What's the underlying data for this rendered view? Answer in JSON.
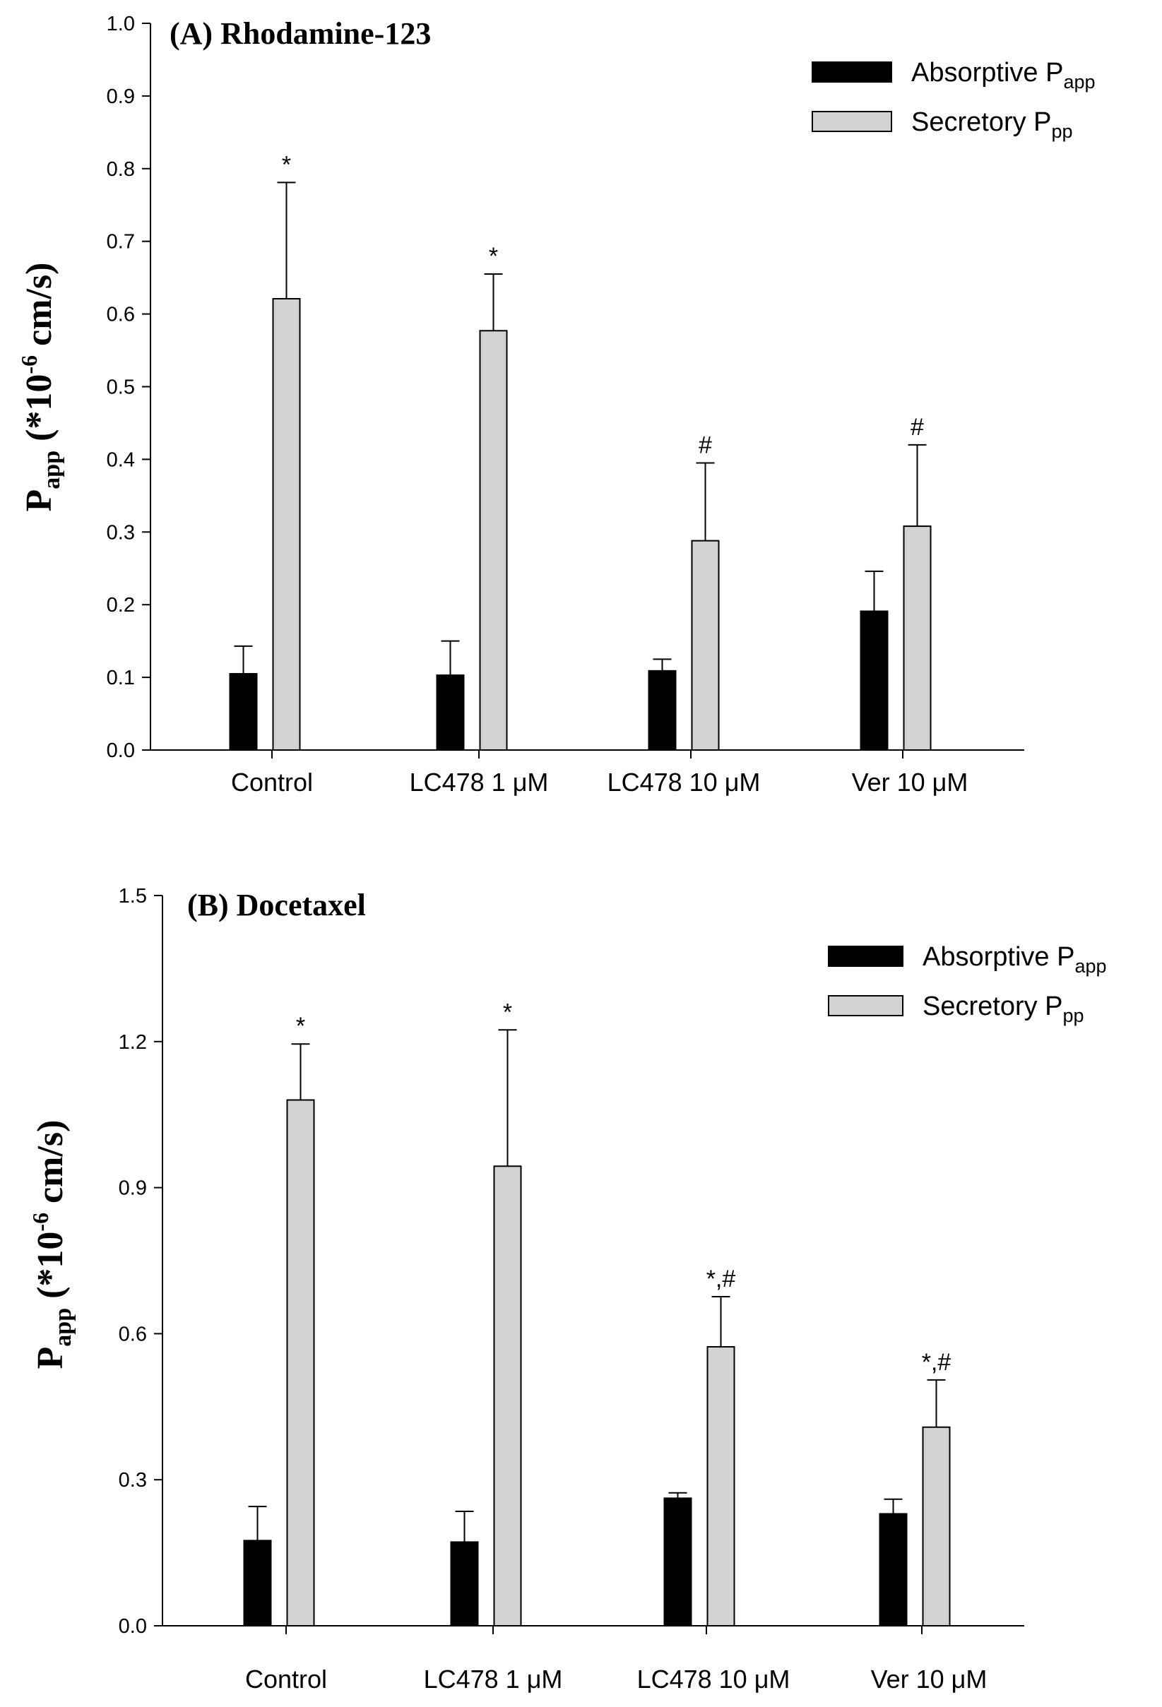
{
  "chart_data": [
    {
      "type": "bar",
      "title": "(A) Rhodamine-123",
      "ylabel": "P",
      "ylabel_sub": "app",
      "ylabel_rest": " (*10",
      "ylabel_sup": "-6",
      "ylabel_end": " cm/s)",
      "xlabel": "",
      "ylim": [
        0,
        1.0
      ],
      "yticks": [
        "0.0",
        "0.1",
        "0.2",
        "0.3",
        "0.4",
        "0.5",
        "0.6",
        "0.7",
        "0.8",
        "0.9",
        "1.0"
      ],
      "categories": [
        "Control",
        "LC478 1 μM",
        "LC478 10 μM",
        "Ver 10 μM"
      ],
      "legend_position": "top-right",
      "series": [
        {
          "name": "Absorptive P",
          "name_sub": "app",
          "color": "#000000",
          "values": [
            0.105,
            0.103,
            0.109,
            0.191
          ],
          "errors": [
            0.038,
            0.047,
            0.016,
            0.055
          ],
          "annotations": [
            "",
            "",
            "",
            ""
          ]
        },
        {
          "name": "Secretory P",
          "name_sub": "pp",
          "color": "#d3d3d3",
          "values": [
            0.621,
            0.577,
            0.288,
            0.308
          ],
          "errors": [
            0.16,
            0.078,
            0.107,
            0.112
          ],
          "annotations": [
            "*",
            "*",
            "#",
            "#"
          ]
        }
      ]
    },
    {
      "type": "bar",
      "title": "(B) Docetaxel",
      "ylabel": "P",
      "ylabel_sub": "app",
      "ylabel_rest": " (*10",
      "ylabel_sup": "-6",
      "ylabel_end": " cm/s)",
      "xlabel": "",
      "ylim": [
        0,
        1.5
      ],
      "yticks": [
        "0.0",
        "0.3",
        "0.6",
        "0.9",
        "1.2",
        "1.5"
      ],
      "categories": [
        "Control",
        "LC478 1 μM",
        "LC478 10 μM",
        "Ver 10 μM"
      ],
      "legend_position": "top-right",
      "series": [
        {
          "name": "Absorptive P",
          "name_sub": "app",
          "color": "#000000",
          "values": [
            0.175,
            0.172,
            0.262,
            0.23
          ],
          "errors": [
            0.07,
            0.063,
            0.011,
            0.03
          ],
          "annotations": [
            "",
            "",
            "",
            ""
          ]
        },
        {
          "name": "Secretory P",
          "name_sub": "pp",
          "color": "#d3d3d3",
          "values": [
            1.08,
            0.944,
            0.573,
            0.408
          ],
          "errors": [
            0.115,
            0.28,
            0.103,
            0.097
          ],
          "annotations": [
            "*",
            "*",
            "*,#",
            "*,#"
          ]
        }
      ]
    }
  ]
}
